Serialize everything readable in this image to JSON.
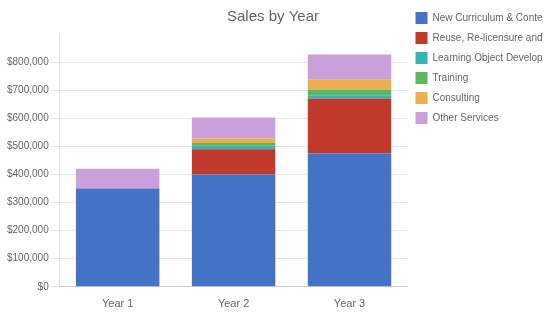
{
  "chart_data": {
    "type": "bar",
    "title": "Sales by Year",
    "categories": [
      "Year 1",
      "Year 2",
      "Year 3"
    ],
    "stacked": true,
    "series": [
      {
        "name": "New Curriculum & Content Deve",
        "color": "#4472C4",
        "values": [
          350000,
          400000,
          475000
        ]
      },
      {
        "name": "Reuse, Re-licensure and Mainte",
        "color": "#C0392B",
        "values": [
          0,
          90000,
          195000
        ]
      },
      {
        "name": "Learning Object Development",
        "color": "#36B3B3",
        "values": [
          0,
          12000,
          12000
        ]
      },
      {
        "name": "Training",
        "color": "#5CB85C",
        "values": [
          0,
          10000,
          20000
        ]
      },
      {
        "name": "Consulting",
        "color": "#F0AD4E",
        "values": [
          0,
          16000,
          35000
        ]
      },
      {
        "name": "Other Services",
        "color": "#C9A0DC",
        "values": [
          70000,
          75000,
          90000
        ]
      }
    ],
    "ylim": [
      0,
      900000
    ],
    "yticks": [
      {
        "value": 0,
        "label": "$0"
      },
      {
        "value": 100000,
        "label": "$100,000"
      },
      {
        "value": 200000,
        "label": "$200,000"
      },
      {
        "value": 300000,
        "label": "$300,000"
      },
      {
        "value": 400000,
        "label": "$400,000"
      },
      {
        "value": 500000,
        "label": "$500,000"
      },
      {
        "value": 600000,
        "label": "$600,000"
      },
      {
        "value": 700000,
        "label": "$700,000"
      },
      {
        "value": 800000,
        "label": "$800,000"
      }
    ],
    "grid": true,
    "legend": "right"
  }
}
